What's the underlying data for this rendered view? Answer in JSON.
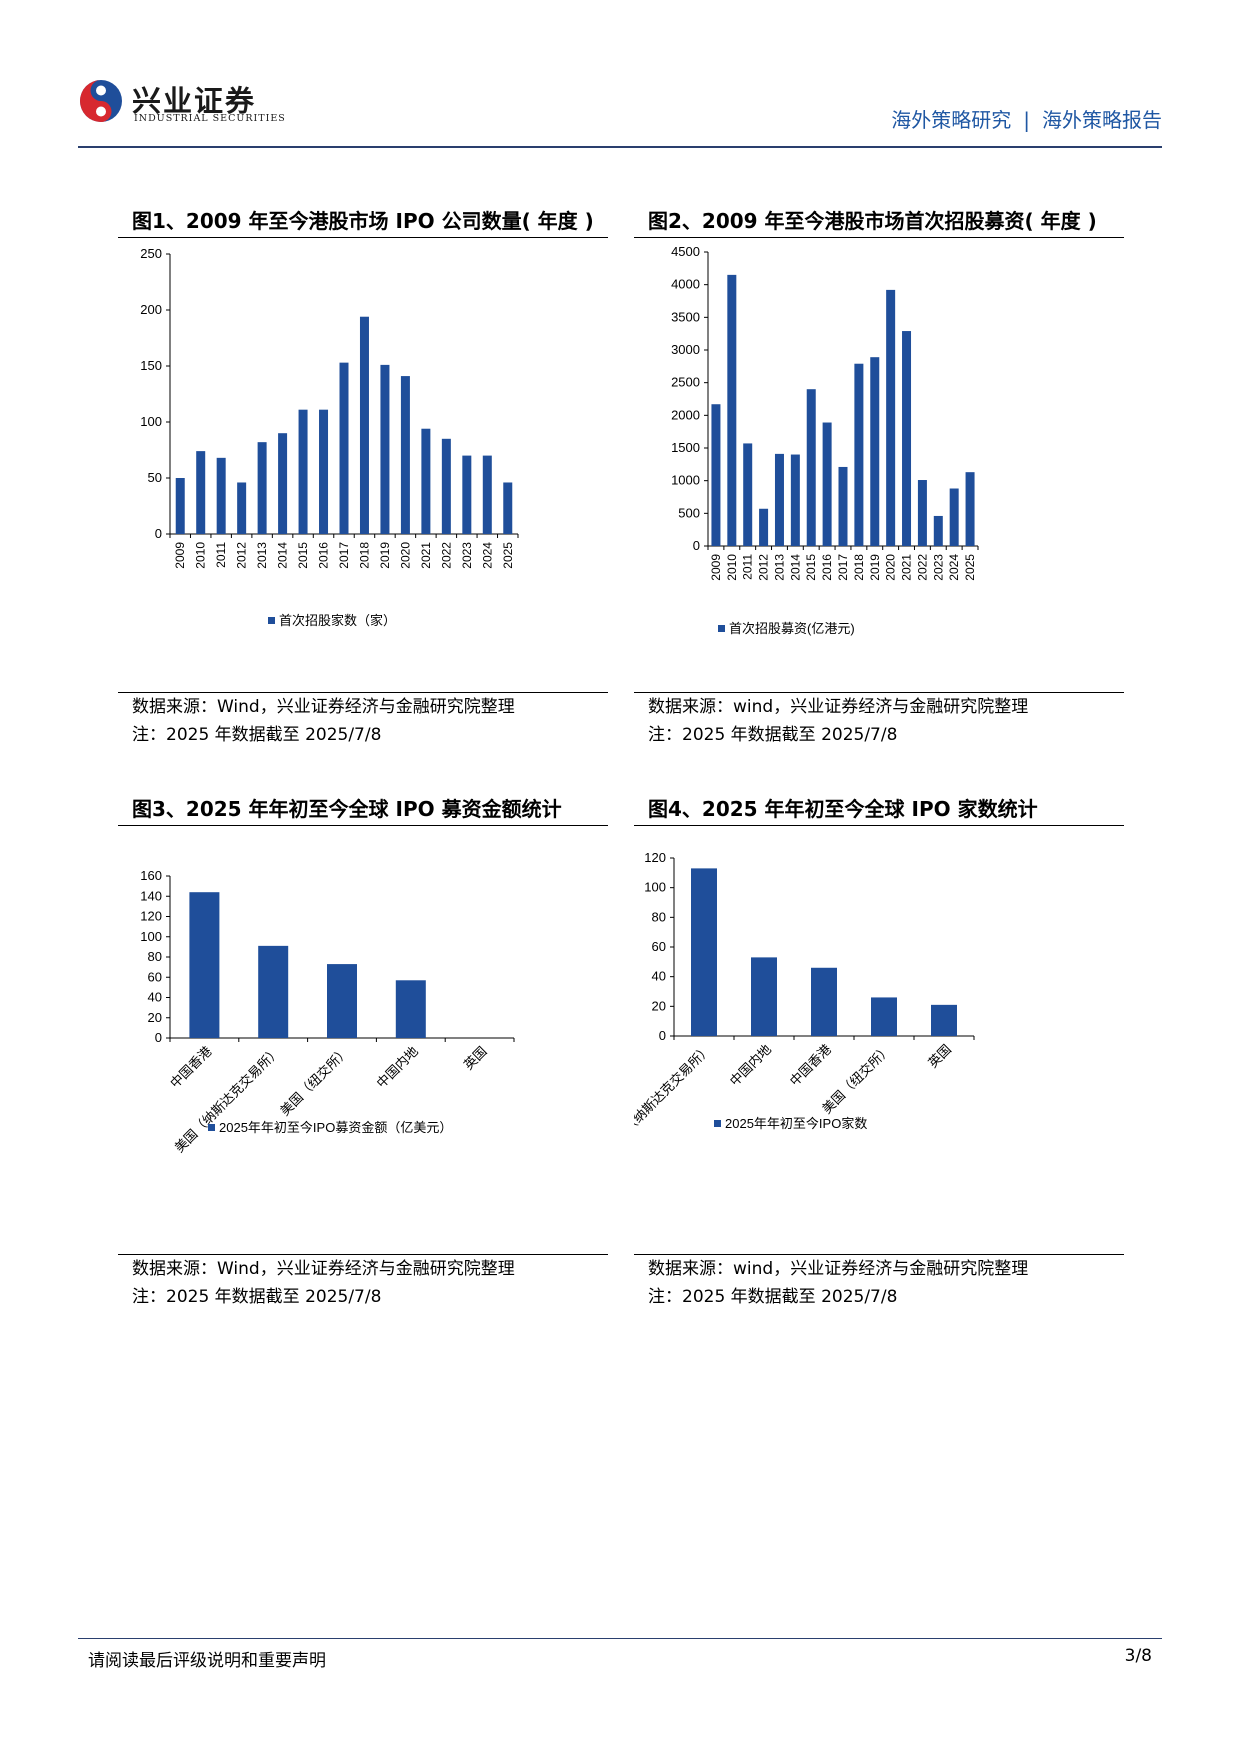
{
  "header": {
    "logo_cn": "兴业证券",
    "logo_en": "INDUSTRIAL SECURITIES",
    "breadcrumb_left": "海外策略研究",
    "breadcrumb_sep": "|",
    "breadcrumb_right": "海外策略报告"
  },
  "colors": {
    "bar": "#1f4e9a",
    "accent": "#1f57a3",
    "logo_red": "#d7282f",
    "logo_blue": "#1f4e9a"
  },
  "panels": [
    {
      "title": "图1、2009 年至今港股市场 IPO 公司数量( 年度 )",
      "source": "数据来源：Wind，兴业证券经济与金融研究院整理",
      "note": "注：2025 年数据截至 2025/7/8"
    },
    {
      "title": "图2、2009 年至今港股市场首次招股募资( 年度 )",
      "source": "数据来源：wind，兴业证券经济与金融研究院整理",
      "note": "注：2025 年数据截至 2025/7/8"
    },
    {
      "title": "图3、2025 年年初至今全球 IPO 募资金额统计",
      "source": "数据来源：Wind，兴业证券经济与金融研究院整理",
      "note": "注：2025 年数据截至 2025/7/8"
    },
    {
      "title": "图4、2025 年年初至今全球 IPO 家数统计",
      "source": "数据来源：wind，兴业证券经济与金融研究院整理",
      "note": "注：2025 年数据截至 2025/7/8"
    }
  ],
  "chart_data": [
    {
      "type": "bar",
      "categories": [
        "2009",
        "2010",
        "2011",
        "2012",
        "2013",
        "2014",
        "2015",
        "2016",
        "2017",
        "2018",
        "2019",
        "2020",
        "2021",
        "2022",
        "2023",
        "2024",
        "2025"
      ],
      "series": [
        {
          "name": "首次招股家数（家）",
          "values": [
            50,
            74,
            68,
            46,
            82,
            90,
            111,
            111,
            153,
            194,
            151,
            141,
            94,
            85,
            70,
            70,
            46
          ]
        }
      ],
      "yticks": [
        "0",
        "50",
        "100",
        "150",
        "200",
        "250"
      ],
      "ylim": [
        0,
        250
      ],
      "xlabel_rotation": "vertical",
      "legend": "bottom"
    },
    {
      "type": "bar",
      "categories": [
        "2009",
        "2010",
        "2011",
        "2012",
        "2013",
        "2014",
        "2015",
        "2016",
        "2017",
        "2018",
        "2019",
        "2020",
        "2021",
        "2022",
        "2023",
        "2024",
        "2025"
      ],
      "series": [
        {
          "name": "首次招股募资(亿港元)",
          "values": [
            2170,
            4150,
            1570,
            570,
            1410,
            1400,
            2400,
            1890,
            1210,
            2790,
            2890,
            3920,
            3290,
            1010,
            460,
            880,
            1130
          ]
        }
      ],
      "yticks": [
        "0",
        "500",
        "1000",
        "1500",
        "2000",
        "2500",
        "3000",
        "3500",
        "4000",
        "4500"
      ],
      "ylim": [
        0,
        4500
      ],
      "xlabel_rotation": "vertical",
      "legend": "bottom"
    },
    {
      "type": "bar",
      "categories": [
        "中国香港",
        "美国（纳斯达克交易所）",
        "美国（纽交所）",
        "中国内地",
        "英国"
      ],
      "series": [
        {
          "name": "2025年年初至今IPO募资金额（亿美元）",
          "values": [
            144,
            91,
            73,
            57,
            0
          ]
        }
      ],
      "yticks": [
        "0",
        "20",
        "40",
        "60",
        "80",
        "100",
        "120",
        "140",
        "160"
      ],
      "ylim": [
        0,
        160
      ],
      "xlabel_rotation": "diagonal",
      "legend": "bottom"
    },
    {
      "type": "bar",
      "categories": [
        "美国（纳斯达克交易所）",
        "中国内地",
        "中国香港",
        "美国（纽交所）",
        "英国"
      ],
      "series": [
        {
          "name": "2025年年初至今IPO家数",
          "values": [
            113,
            53,
            46,
            26,
            21
          ]
        }
      ],
      "yticks": [
        "0",
        "20",
        "40",
        "60",
        "80",
        "100",
        "120"
      ],
      "ylim": [
        0,
        120
      ],
      "xlabel_rotation": "diagonal",
      "legend": "bottom"
    }
  ],
  "footer": {
    "disclaimer": "请阅读最后评级说明和重要声明",
    "page": "3/8"
  }
}
